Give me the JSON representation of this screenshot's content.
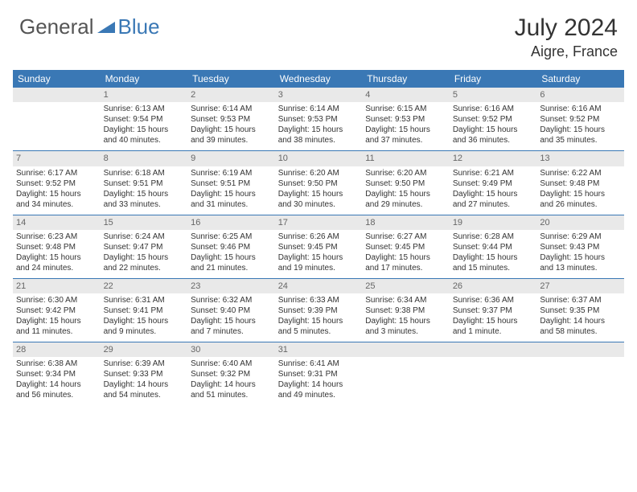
{
  "logo": {
    "part1": "General",
    "part2": "Blue"
  },
  "title": "July 2024",
  "location": "Aigre, France",
  "header_bg": "#3a78b5",
  "daynum_bg": "#e9e9e9",
  "days_of_week": [
    "Sunday",
    "Monday",
    "Tuesday",
    "Wednesday",
    "Thursday",
    "Friday",
    "Saturday"
  ],
  "weeks": [
    [
      null,
      {
        "n": "1",
        "sr": "Sunrise: 6:13 AM",
        "ss": "Sunset: 9:54 PM",
        "d1": "Daylight: 15 hours",
        "d2": "and 40 minutes."
      },
      {
        "n": "2",
        "sr": "Sunrise: 6:14 AM",
        "ss": "Sunset: 9:53 PM",
        "d1": "Daylight: 15 hours",
        "d2": "and 39 minutes."
      },
      {
        "n": "3",
        "sr": "Sunrise: 6:14 AM",
        "ss": "Sunset: 9:53 PM",
        "d1": "Daylight: 15 hours",
        "d2": "and 38 minutes."
      },
      {
        "n": "4",
        "sr": "Sunrise: 6:15 AM",
        "ss": "Sunset: 9:53 PM",
        "d1": "Daylight: 15 hours",
        "d2": "and 37 minutes."
      },
      {
        "n": "5",
        "sr": "Sunrise: 6:16 AM",
        "ss": "Sunset: 9:52 PM",
        "d1": "Daylight: 15 hours",
        "d2": "and 36 minutes."
      },
      {
        "n": "6",
        "sr": "Sunrise: 6:16 AM",
        "ss": "Sunset: 9:52 PM",
        "d1": "Daylight: 15 hours",
        "d2": "and 35 minutes."
      }
    ],
    [
      {
        "n": "7",
        "sr": "Sunrise: 6:17 AM",
        "ss": "Sunset: 9:52 PM",
        "d1": "Daylight: 15 hours",
        "d2": "and 34 minutes."
      },
      {
        "n": "8",
        "sr": "Sunrise: 6:18 AM",
        "ss": "Sunset: 9:51 PM",
        "d1": "Daylight: 15 hours",
        "d2": "and 33 minutes."
      },
      {
        "n": "9",
        "sr": "Sunrise: 6:19 AM",
        "ss": "Sunset: 9:51 PM",
        "d1": "Daylight: 15 hours",
        "d2": "and 31 minutes."
      },
      {
        "n": "10",
        "sr": "Sunrise: 6:20 AM",
        "ss": "Sunset: 9:50 PM",
        "d1": "Daylight: 15 hours",
        "d2": "and 30 minutes."
      },
      {
        "n": "11",
        "sr": "Sunrise: 6:20 AM",
        "ss": "Sunset: 9:50 PM",
        "d1": "Daylight: 15 hours",
        "d2": "and 29 minutes."
      },
      {
        "n": "12",
        "sr": "Sunrise: 6:21 AM",
        "ss": "Sunset: 9:49 PM",
        "d1": "Daylight: 15 hours",
        "d2": "and 27 minutes."
      },
      {
        "n": "13",
        "sr": "Sunrise: 6:22 AM",
        "ss": "Sunset: 9:48 PM",
        "d1": "Daylight: 15 hours",
        "d2": "and 26 minutes."
      }
    ],
    [
      {
        "n": "14",
        "sr": "Sunrise: 6:23 AM",
        "ss": "Sunset: 9:48 PM",
        "d1": "Daylight: 15 hours",
        "d2": "and 24 minutes."
      },
      {
        "n": "15",
        "sr": "Sunrise: 6:24 AM",
        "ss": "Sunset: 9:47 PM",
        "d1": "Daylight: 15 hours",
        "d2": "and 22 minutes."
      },
      {
        "n": "16",
        "sr": "Sunrise: 6:25 AM",
        "ss": "Sunset: 9:46 PM",
        "d1": "Daylight: 15 hours",
        "d2": "and 21 minutes."
      },
      {
        "n": "17",
        "sr": "Sunrise: 6:26 AM",
        "ss": "Sunset: 9:45 PM",
        "d1": "Daylight: 15 hours",
        "d2": "and 19 minutes."
      },
      {
        "n": "18",
        "sr": "Sunrise: 6:27 AM",
        "ss": "Sunset: 9:45 PM",
        "d1": "Daylight: 15 hours",
        "d2": "and 17 minutes."
      },
      {
        "n": "19",
        "sr": "Sunrise: 6:28 AM",
        "ss": "Sunset: 9:44 PM",
        "d1": "Daylight: 15 hours",
        "d2": "and 15 minutes."
      },
      {
        "n": "20",
        "sr": "Sunrise: 6:29 AM",
        "ss": "Sunset: 9:43 PM",
        "d1": "Daylight: 15 hours",
        "d2": "and 13 minutes."
      }
    ],
    [
      {
        "n": "21",
        "sr": "Sunrise: 6:30 AM",
        "ss": "Sunset: 9:42 PM",
        "d1": "Daylight: 15 hours",
        "d2": "and 11 minutes."
      },
      {
        "n": "22",
        "sr": "Sunrise: 6:31 AM",
        "ss": "Sunset: 9:41 PM",
        "d1": "Daylight: 15 hours",
        "d2": "and 9 minutes."
      },
      {
        "n": "23",
        "sr": "Sunrise: 6:32 AM",
        "ss": "Sunset: 9:40 PM",
        "d1": "Daylight: 15 hours",
        "d2": "and 7 minutes."
      },
      {
        "n": "24",
        "sr": "Sunrise: 6:33 AM",
        "ss": "Sunset: 9:39 PM",
        "d1": "Daylight: 15 hours",
        "d2": "and 5 minutes."
      },
      {
        "n": "25",
        "sr": "Sunrise: 6:34 AM",
        "ss": "Sunset: 9:38 PM",
        "d1": "Daylight: 15 hours",
        "d2": "and 3 minutes."
      },
      {
        "n": "26",
        "sr": "Sunrise: 6:36 AM",
        "ss": "Sunset: 9:37 PM",
        "d1": "Daylight: 15 hours",
        "d2": "and 1 minute."
      },
      {
        "n": "27",
        "sr": "Sunrise: 6:37 AM",
        "ss": "Sunset: 9:35 PM",
        "d1": "Daylight: 14 hours",
        "d2": "and 58 minutes."
      }
    ],
    [
      {
        "n": "28",
        "sr": "Sunrise: 6:38 AM",
        "ss": "Sunset: 9:34 PM",
        "d1": "Daylight: 14 hours",
        "d2": "and 56 minutes."
      },
      {
        "n": "29",
        "sr": "Sunrise: 6:39 AM",
        "ss": "Sunset: 9:33 PM",
        "d1": "Daylight: 14 hours",
        "d2": "and 54 minutes."
      },
      {
        "n": "30",
        "sr": "Sunrise: 6:40 AM",
        "ss": "Sunset: 9:32 PM",
        "d1": "Daylight: 14 hours",
        "d2": "and 51 minutes."
      },
      {
        "n": "31",
        "sr": "Sunrise: 6:41 AM",
        "ss": "Sunset: 9:31 PM",
        "d1": "Daylight: 14 hours",
        "d2": "and 49 minutes."
      },
      null,
      null,
      null
    ]
  ]
}
